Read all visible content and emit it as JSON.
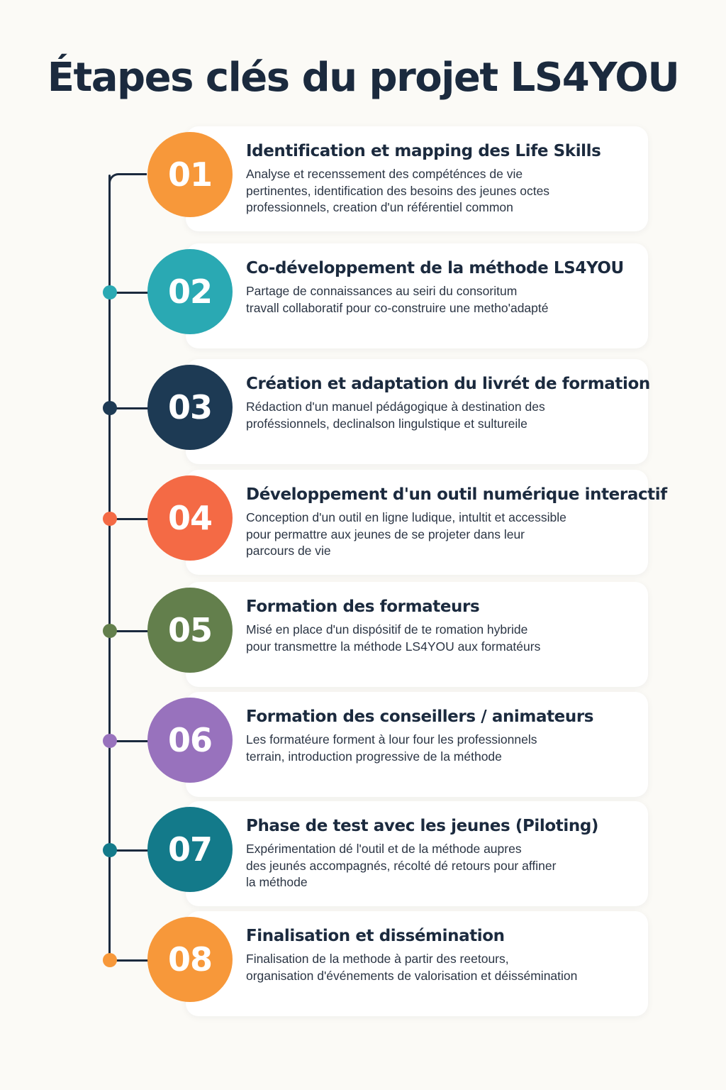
{
  "title": "Étapes clés du projet LS4YOU",
  "colors": {
    "orange": "#f7983a",
    "teal": "#2aa9b3",
    "navy": "#1d3a54",
    "coral": "#f46a45",
    "olive": "#637f4c",
    "purple": "#9872bd",
    "deep_teal": "#137a8a",
    "line": "#1b2a3e"
  },
  "steps": [
    {
      "number": "01",
      "color": "#f7983a",
      "title": "Identification et mapping des Life Skills",
      "desc_lines": [
        "Analyse et recenssement des compéténces de vie",
        "pertinentes, identification des besoins des jeunes octes",
        "professionnels, creation d'un référentiel common"
      ]
    },
    {
      "number": "02",
      "color": "#2aa9b3",
      "title": "Co-développement de la méthode LS4YOU",
      "desc_lines": [
        "Partage de connaissances au seiri du consoritum",
        "travall collaboratif pour co-construire une metho'adapté"
      ]
    },
    {
      "number": "03",
      "color": "#1d3a54",
      "title": "Création et adaptation du livrét de formation",
      "desc_lines": [
        "Rédaction d'un manuel pédágogique à destination des",
        "proféssionnels, declinalson lingulstique et sultureile"
      ]
    },
    {
      "number": "04",
      "color": "#f46a45",
      "title": "Développement d'un outil numérique interactif",
      "desc_lines": [
        "Conception d'un outil en ligne ludique, intultit et accessible",
        "pour permattre aux jeunes de se projeter dans leur",
        "parcours de vie"
      ]
    },
    {
      "number": "05",
      "color": "#637f4c",
      "title": "Formation des formateurs",
      "desc_lines": [
        "Misé en place d'un dispósitif de te romation hybride",
        "pour transmettre la méthode LS4YOU aux formatéurs"
      ]
    },
    {
      "number": "06",
      "color": "#9872bd",
      "title": "Formation des conseillers / animateurs",
      "desc_lines": [
        "Les formatéure forment à lour four les professionnels",
        "terrain, introduction progressive de la méthode"
      ]
    },
    {
      "number": "07",
      "color": "#137a8a",
      "title": "Phase de test avec les jeunes (Piloting)",
      "desc_lines": [
        "Expérimentation dé l'outil et de la méthode aupres",
        "des jeunés accompagnés, récolté dé retours pour affiner",
        "la méthode"
      ]
    },
    {
      "number": "08",
      "color": "#f7983a",
      "title": "Finalisation et dissémination",
      "desc_lines": [
        "Finalisation de la methode à partir des reetours,",
        "organisation d'événements de valorisation et déissémination"
      ]
    }
  ]
}
